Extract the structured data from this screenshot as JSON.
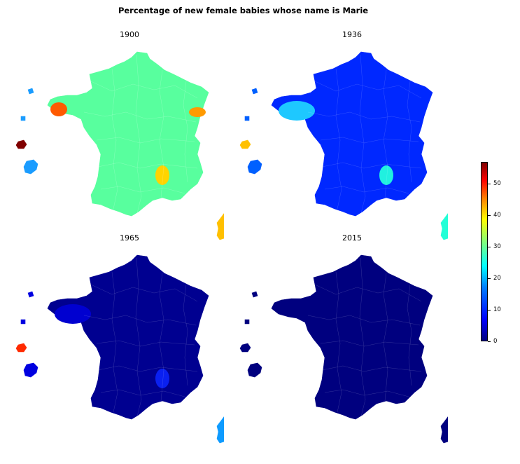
{
  "title": "Percentage of new female babies whose name is Marie",
  "panels": [
    {
      "year": "1900",
      "fill": "#58ff9e",
      "corsica": "#ffc000",
      "west_island": "#800000",
      "small_island": "#1a9cff",
      "cote_darmor": "#ff5a00",
      "orne_area": "#ff9a00",
      "south_hot": "#ffd400"
    },
    {
      "year": "1936",
      "fill": "#0028ff",
      "corsica": "#22ffd7",
      "west_island": "#ffc000",
      "small_island": "#0060ff",
      "brittany": "#1ec8ff",
      "south_hot": "#20f0e0"
    },
    {
      "year": "1965",
      "fill": "#000090",
      "corsica": "#0e9bff",
      "west_island": "#ff2a00",
      "small_island": "#0000e0",
      "brittany": "#0000d0",
      "south_hot": "#0a20f0"
    },
    {
      "year": "2015",
      "fill": "#00007f",
      "corsica": "#00007f",
      "west_island": "#00007f",
      "small_island": "#00007f"
    }
  ],
  "colorbar": {
    "colormap": "jet",
    "min": 0,
    "max": 57,
    "ticks": [
      "0",
      "10",
      "20",
      "30",
      "40",
      "50"
    ]
  }
}
